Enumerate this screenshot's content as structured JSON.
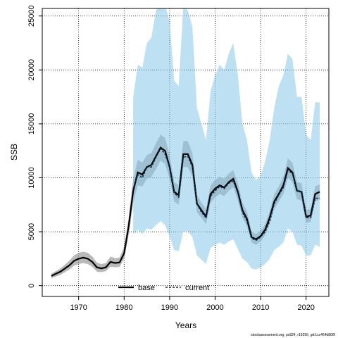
{
  "chart_data": {
    "type": "line",
    "title": "",
    "xlabel": "Years",
    "ylabel": "SSB",
    "xlim": [
      1962,
      2025
    ],
    "ylim": [
      -1000,
      25700
    ],
    "xticks": [
      1970,
      1980,
      1990,
      2000,
      2010,
      2020
    ],
    "yticks": [
      0,
      5000,
      10000,
      15000,
      20000,
      25000
    ],
    "grid": true,
    "legend_position": "bottom-center",
    "colors": {
      "base_line": "#000000",
      "base_band": "#808080",
      "current_line": "#0b2d4a",
      "current_band": "#87c6e8"
    },
    "footer_text": "stockassessment.org, pc824, r19256, git:1cc464b806f",
    "series": [
      {
        "name": "base",
        "x": [
          1964,
          1965,
          1966,
          1967,
          1968,
          1969,
          1970,
          1971,
          1972,
          1973,
          1974,
          1975,
          1976,
          1977,
          1978,
          1979,
          1980,
          1981,
          1982,
          1983,
          1984,
          1985,
          1986,
          1987,
          1988,
          1989,
          1990,
          1991,
          1992,
          1993,
          1994,
          1995,
          1996,
          1997,
          1998,
          1999,
          2000,
          2001,
          2002,
          2003,
          2004,
          2005,
          2006,
          2007,
          2008,
          2009,
          2010,
          2011,
          2012,
          2013,
          2014,
          2015,
          2016,
          2017,
          2018,
          2019,
          2020,
          2021,
          2022,
          2023
        ],
        "values": [
          900,
          1100,
          1300,
          1600,
          1900,
          2300,
          2500,
          2600,
          2500,
          2200,
          1700,
          1600,
          1700,
          2200,
          2100,
          2150,
          3000,
          5500,
          8800,
          10500,
          10300,
          11000,
          11200,
          12000,
          12800,
          12500,
          11000,
          8700,
          8400,
          12200,
          12200,
          11200,
          7600,
          7000,
          6400,
          8500,
          9000,
          9300,
          9100,
          9600,
          9900,
          8700,
          7000,
          6200,
          4500,
          4300,
          4600,
          5200,
          6300,
          7800,
          8500,
          9300,
          10900,
          10500,
          8800,
          8700,
          6400,
          6500,
          8500,
          8700
        ],
        "lower": [
          700,
          850,
          1000,
          1250,
          1500,
          1850,
          2000,
          2100,
          2000,
          1750,
          1300,
          1250,
          1350,
          1750,
          1700,
          1750,
          2500,
          4700,
          7700,
          9300,
          9200,
          9900,
          10100,
          10800,
          11600,
          11300,
          9900,
          7800,
          7500,
          11000,
          11000,
          10100,
          6800,
          6300,
          5700,
          7700,
          8200,
          8500,
          8300,
          8800,
          9100,
          7900,
          6300,
          5500,
          4000,
          3800,
          4100,
          4700,
          5700,
          7100,
          7800,
          8500,
          10000,
          9600,
          8000,
          7900,
          5800,
          5900,
          7800,
          8000
        ],
        "upper": [
          1100,
          1350,
          1600,
          1950,
          2350,
          2800,
          3050,
          3150,
          3050,
          2700,
          2150,
          2000,
          2100,
          2700,
          2550,
          2600,
          3600,
          6300,
          9900,
          11700,
          11400,
          12100,
          12300,
          13200,
          14000,
          13700,
          12100,
          9600,
          9300,
          13400,
          13400,
          12300,
          8400,
          7700,
          7100,
          9300,
          9800,
          10100,
          9900,
          10400,
          10700,
          9500,
          7700,
          6900,
          5000,
          4800,
          5100,
          5700,
          6900,
          8500,
          9200,
          10100,
          11800,
          11400,
          9600,
          9500,
          7000,
          7100,
          9200,
          9400
        ]
      },
      {
        "name": "current",
        "x": [
          1982,
          1983,
          1984,
          1985,
          1986,
          1987,
          1988,
          1989,
          1990,
          1991,
          1992,
          1993,
          1994,
          1995,
          1996,
          1997,
          1998,
          1999,
          2000,
          2001,
          2002,
          2003,
          2004,
          2005,
          2006,
          2007,
          2008,
          2009,
          2010,
          2011,
          2012,
          2013,
          2014,
          2015,
          2016,
          2017,
          2018,
          2019,
          2020,
          2021,
          2022,
          2023
        ],
        "values": [
          9000,
          10300,
          10000,
          11000,
          11000,
          11900,
          12700,
          12200,
          11000,
          8600,
          8200,
          11900,
          12000,
          11000,
          7600,
          6800,
          6300,
          8300,
          8800,
          9200,
          9000,
          9500,
          9700,
          8600,
          6800,
          6000,
          4400,
          4200,
          4500,
          5000,
          6000,
          7600,
          8400,
          9100,
          10700,
          10400,
          8800,
          8700,
          6300,
          6300,
          8100,
          8100
        ],
        "lower": [
          4800,
          5200,
          4800,
          5300,
          5200,
          5600,
          6000,
          5600,
          4600,
          3300,
          3200,
          5000,
          5100,
          4500,
          2800,
          2400,
          2000,
          3500,
          3800,
          4000,
          3800,
          4100,
          4300,
          3400,
          2500,
          2200,
          1600,
          1500,
          1700,
          2000,
          2500,
          3300,
          3600,
          4000,
          5300,
          5000,
          3800,
          3700,
          2800,
          2800,
          3800,
          3600
        ],
        "upper": [
          17500,
          20500,
          20200,
          22500,
          23000,
          25500,
          26500,
          26000,
          24500,
          19000,
          18500,
          26000,
          25500,
          24000,
          16500,
          15000,
          13500,
          18000,
          19500,
          20500,
          20000,
          21500,
          22500,
          19500,
          15000,
          13500,
          10500,
          9800,
          10200,
          11500,
          13500,
          16500,
          18500,
          19500,
          21500,
          21000,
          17500,
          17500,
          14000,
          13500,
          17000,
          17000
        ]
      }
    ]
  }
}
